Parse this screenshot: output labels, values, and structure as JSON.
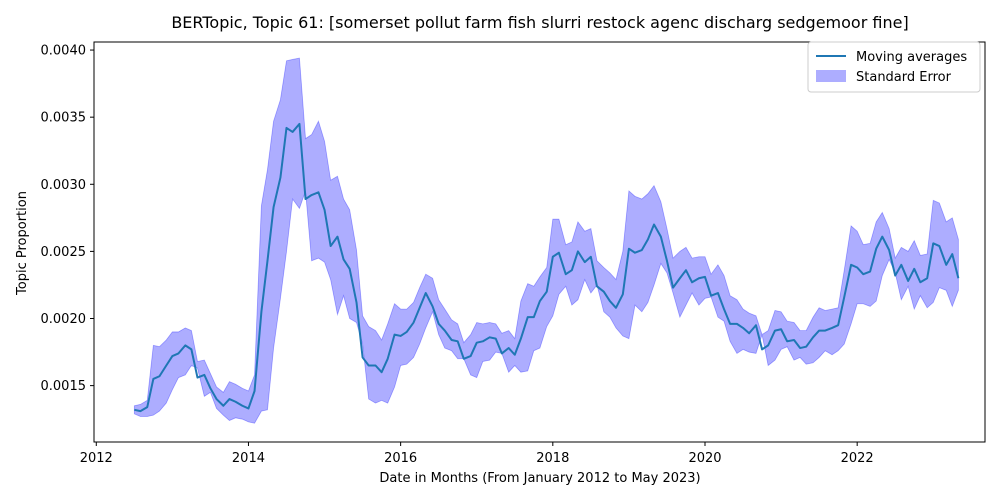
{
  "chart_data": {
    "type": "line",
    "title": "BERTopic, Topic 61: [somerset pollut farm fish slurri restock agenc discharg sedgemoor fine]",
    "xlabel": "Date in Months (From January 2012 to May 2023)",
    "ylabel": "Topic Proportion",
    "xlim": [
      2011.97,
      2023.68
    ],
    "ylim": [
      0.00108,
      0.00406
    ],
    "x_ticks": [
      2012,
      2014,
      2016,
      2018,
      2020,
      2022
    ],
    "x_tick_labels": [
      "2012",
      "2014",
      "2016",
      "2018",
      "2020",
      "2022"
    ],
    "y_ticks": [
      0.0015,
      0.002,
      0.0025,
      0.003,
      0.0035,
      0.004
    ],
    "y_tick_labels": [
      "0.0015",
      "0.0020",
      "0.0025",
      "0.0030",
      "0.0035",
      "0.0040"
    ],
    "grid": false,
    "legend": {
      "placement": "top-right",
      "entries": [
        "Moving averages",
        "Standard Error"
      ]
    },
    "colors": {
      "line": "#1f77b4",
      "band": "#0000ff",
      "band_opacity": 0.32
    },
    "x": [
      2012.5,
      2012.58,
      2012.67,
      2012.75,
      2012.83,
      2012.92,
      2013.0,
      2013.08,
      2013.17,
      2013.25,
      2013.33,
      2013.42,
      2013.5,
      2013.58,
      2013.67,
      2013.75,
      2013.83,
      2013.92,
      2014.0,
      2014.08,
      2014.17,
      2014.25,
      2014.33,
      2014.42,
      2014.5,
      2014.58,
      2014.67,
      2014.75,
      2014.83,
      2014.92,
      2015.0,
      2015.08,
      2015.17,
      2015.25,
      2015.33,
      2015.42,
      2015.5,
      2015.58,
      2015.67,
      2015.75,
      2015.83,
      2015.92,
      2016.0,
      2016.08,
      2016.17,
      2016.25,
      2016.33,
      2016.42,
      2016.5,
      2016.58,
      2016.67,
      2016.75,
      2016.83,
      2016.92,
      2017.0,
      2017.08,
      2017.17,
      2017.25,
      2017.33,
      2017.42,
      2017.5,
      2017.58,
      2017.67,
      2017.75,
      2017.83,
      2017.92,
      2018.0,
      2018.08,
      2018.17,
      2018.25,
      2018.33,
      2018.42,
      2018.5,
      2018.58,
      2018.67,
      2018.75,
      2018.83,
      2018.92,
      2019.0,
      2019.08,
      2019.17,
      2019.25,
      2019.33,
      2019.42,
      2019.5,
      2019.58,
      2019.67,
      2019.75,
      2019.83,
      2019.92,
      2020.0,
      2020.08,
      2020.17,
      2020.25,
      2020.33,
      2020.42,
      2020.5,
      2020.58,
      2020.67,
      2020.75,
      2020.83,
      2020.92,
      2021.0,
      2021.08,
      2021.17,
      2021.25,
      2021.33,
      2021.42,
      2021.5,
      2021.58,
      2021.67,
      2021.75,
      2021.83,
      2021.92,
      2022.0,
      2022.08,
      2022.17,
      2022.25,
      2022.33,
      2022.42,
      2022.5,
      2022.58,
      2022.67,
      2022.75,
      2022.83,
      2022.92,
      2023.0,
      2023.08,
      2023.17,
      2023.25,
      2023.33
    ],
    "series": [
      {
        "name": "Moving averages",
        "values": [
          0.00132,
          0.00131,
          0.00134,
          0.00155,
          0.00157,
          0.00165,
          0.00172,
          0.00174,
          0.0018,
          0.00177,
          0.00156,
          0.00158,
          0.00148,
          0.0014,
          0.00135,
          0.0014,
          0.00138,
          0.00135,
          0.00133,
          0.00146,
          0.00205,
          0.00243,
          0.00283,
          0.00305,
          0.00342,
          0.00339,
          0.00345,
          0.00289,
          0.00292,
          0.00294,
          0.00281,
          0.00254,
          0.00261,
          0.00244,
          0.00237,
          0.00212,
          0.00171,
          0.00165,
          0.00165,
          0.0016,
          0.0017,
          0.00188,
          0.00187,
          0.0019,
          0.00197,
          0.00208,
          0.00219,
          0.00209,
          0.00196,
          0.00191,
          0.00184,
          0.00183,
          0.0017,
          0.00172,
          0.00182,
          0.00183,
          0.00186,
          0.00185,
          0.00174,
          0.00178,
          0.00173,
          0.00185,
          0.00201,
          0.00201,
          0.00213,
          0.0022,
          0.00246,
          0.00249,
          0.00233,
          0.00236,
          0.0025,
          0.00242,
          0.00246,
          0.00224,
          0.0022,
          0.00213,
          0.00208,
          0.00218,
          0.00252,
          0.00249,
          0.00251,
          0.00259,
          0.0027,
          0.00261,
          0.00243,
          0.00223,
          0.0023,
          0.00236,
          0.00227,
          0.0023,
          0.00231,
          0.00217,
          0.00219,
          0.00207,
          0.00196,
          0.00196,
          0.00193,
          0.00189,
          0.00195,
          0.00177,
          0.0018,
          0.00191,
          0.00192,
          0.00183,
          0.00184,
          0.00178,
          0.00179,
          0.00186,
          0.00191,
          0.00191,
          0.00193,
          0.00195,
          0.00216,
          0.0024,
          0.00238,
          0.00233,
          0.00235,
          0.00252,
          0.00261,
          0.00251,
          0.00232,
          0.0024,
          0.00228,
          0.00237,
          0.00227,
          0.0023,
          0.00256,
          0.00254,
          0.0024,
          0.00248,
          0.0023
        ]
      }
    ],
    "band": {
      "name": "Standard Error",
      "upper": [
        0.00135,
        0.00136,
        0.00139,
        0.0018,
        0.00179,
        0.00184,
        0.0019,
        0.0019,
        0.00193,
        0.00191,
        0.00168,
        0.00169,
        0.00159,
        0.00149,
        0.00145,
        0.00153,
        0.00151,
        0.00148,
        0.00146,
        0.00158,
        0.00284,
        0.00311,
        0.00347,
        0.00363,
        0.00392,
        0.00393,
        0.00394,
        0.00334,
        0.00337,
        0.00347,
        0.00332,
        0.00303,
        0.00306,
        0.00289,
        0.00281,
        0.00251,
        0.00202,
        0.00194,
        0.00191,
        0.00184,
        0.00196,
        0.00211,
        0.00207,
        0.00207,
        0.00212,
        0.00223,
        0.00233,
        0.0023,
        0.00214,
        0.00207,
        0.00199,
        0.00196,
        0.00182,
        0.00188,
        0.00197,
        0.00196,
        0.00197,
        0.00196,
        0.00189,
        0.00191,
        0.00185,
        0.00213,
        0.00226,
        0.00224,
        0.00231,
        0.00238,
        0.00274,
        0.00274,
        0.00255,
        0.00257,
        0.00272,
        0.00265,
        0.00267,
        0.00243,
        0.00238,
        0.00234,
        0.00229,
        0.0025,
        0.00295,
        0.00291,
        0.00289,
        0.00293,
        0.00299,
        0.00287,
        0.00267,
        0.00245,
        0.0025,
        0.00253,
        0.00245,
        0.00246,
        0.00246,
        0.00233,
        0.0024,
        0.00232,
        0.00217,
        0.00214,
        0.00207,
        0.00204,
        0.00202,
        0.00188,
        0.00191,
        0.00206,
        0.00205,
        0.00198,
        0.00197,
        0.00191,
        0.00191,
        0.00201,
        0.00208,
        0.00206,
        0.00207,
        0.00208,
        0.00236,
        0.00269,
        0.00265,
        0.00255,
        0.00256,
        0.00272,
        0.00279,
        0.00267,
        0.00245,
        0.00253,
        0.0025,
        0.00258,
        0.00247,
        0.00248,
        0.00288,
        0.00286,
        0.00272,
        0.00275,
        0.00259
      ],
      "lower": [
        0.00129,
        0.00127,
        0.00127,
        0.00128,
        0.00131,
        0.00137,
        0.00147,
        0.00156,
        0.00158,
        0.00165,
        0.00163,
        0.00142,
        0.00145,
        0.00133,
        0.00128,
        0.00124,
        0.00126,
        0.00125,
        0.00123,
        0.00122,
        0.00131,
        0.00132,
        0.00178,
        0.00215,
        0.0025,
        0.00289,
        0.00282,
        0.00295,
        0.00243,
        0.00245,
        0.00242,
        0.00229,
        0.00203,
        0.00217,
        0.002,
        0.00197,
        0.00181,
        0.0014,
        0.00137,
        0.00139,
        0.00137,
        0.00149,
        0.00165,
        0.00166,
        0.00171,
        0.00181,
        0.00193,
        0.00205,
        0.00188,
        0.00178,
        0.00176,
        0.0017,
        0.0017,
        0.00158,
        0.00156,
        0.00168,
        0.00169,
        0.00175,
        0.00174,
        0.0016,
        0.00165,
        0.0016,
        0.00161,
        0.00176,
        0.00178,
        0.00194,
        0.00202,
        0.00218,
        0.00224,
        0.0021,
        0.00214,
        0.00229,
        0.00219,
        0.00225,
        0.00205,
        0.00201,
        0.00193,
        0.00187,
        0.00185,
        0.0021,
        0.00205,
        0.00212,
        0.00225,
        0.00241,
        0.00234,
        0.00219,
        0.00201,
        0.0021,
        0.00219,
        0.0021,
        0.00215,
        0.00216,
        0.00201,
        0.00198,
        0.00183,
        0.00174,
        0.00177,
        0.00175,
        0.00174,
        0.00188,
        0.00165,
        0.00169,
        0.00177,
        0.00179,
        0.00169,
        0.00171,
        0.00166,
        0.00167,
        0.00171,
        0.00176,
        0.00173,
        0.00176,
        0.00181,
        0.00196,
        0.00211,
        0.00211,
        0.00209,
        0.00213,
        0.00232,
        0.00244,
        0.00234,
        0.00214,
        0.00224,
        0.00207,
        0.00217,
        0.00208,
        0.00212,
        0.00223,
        0.00221,
        0.00209,
        0.00221
      ]
    }
  }
}
